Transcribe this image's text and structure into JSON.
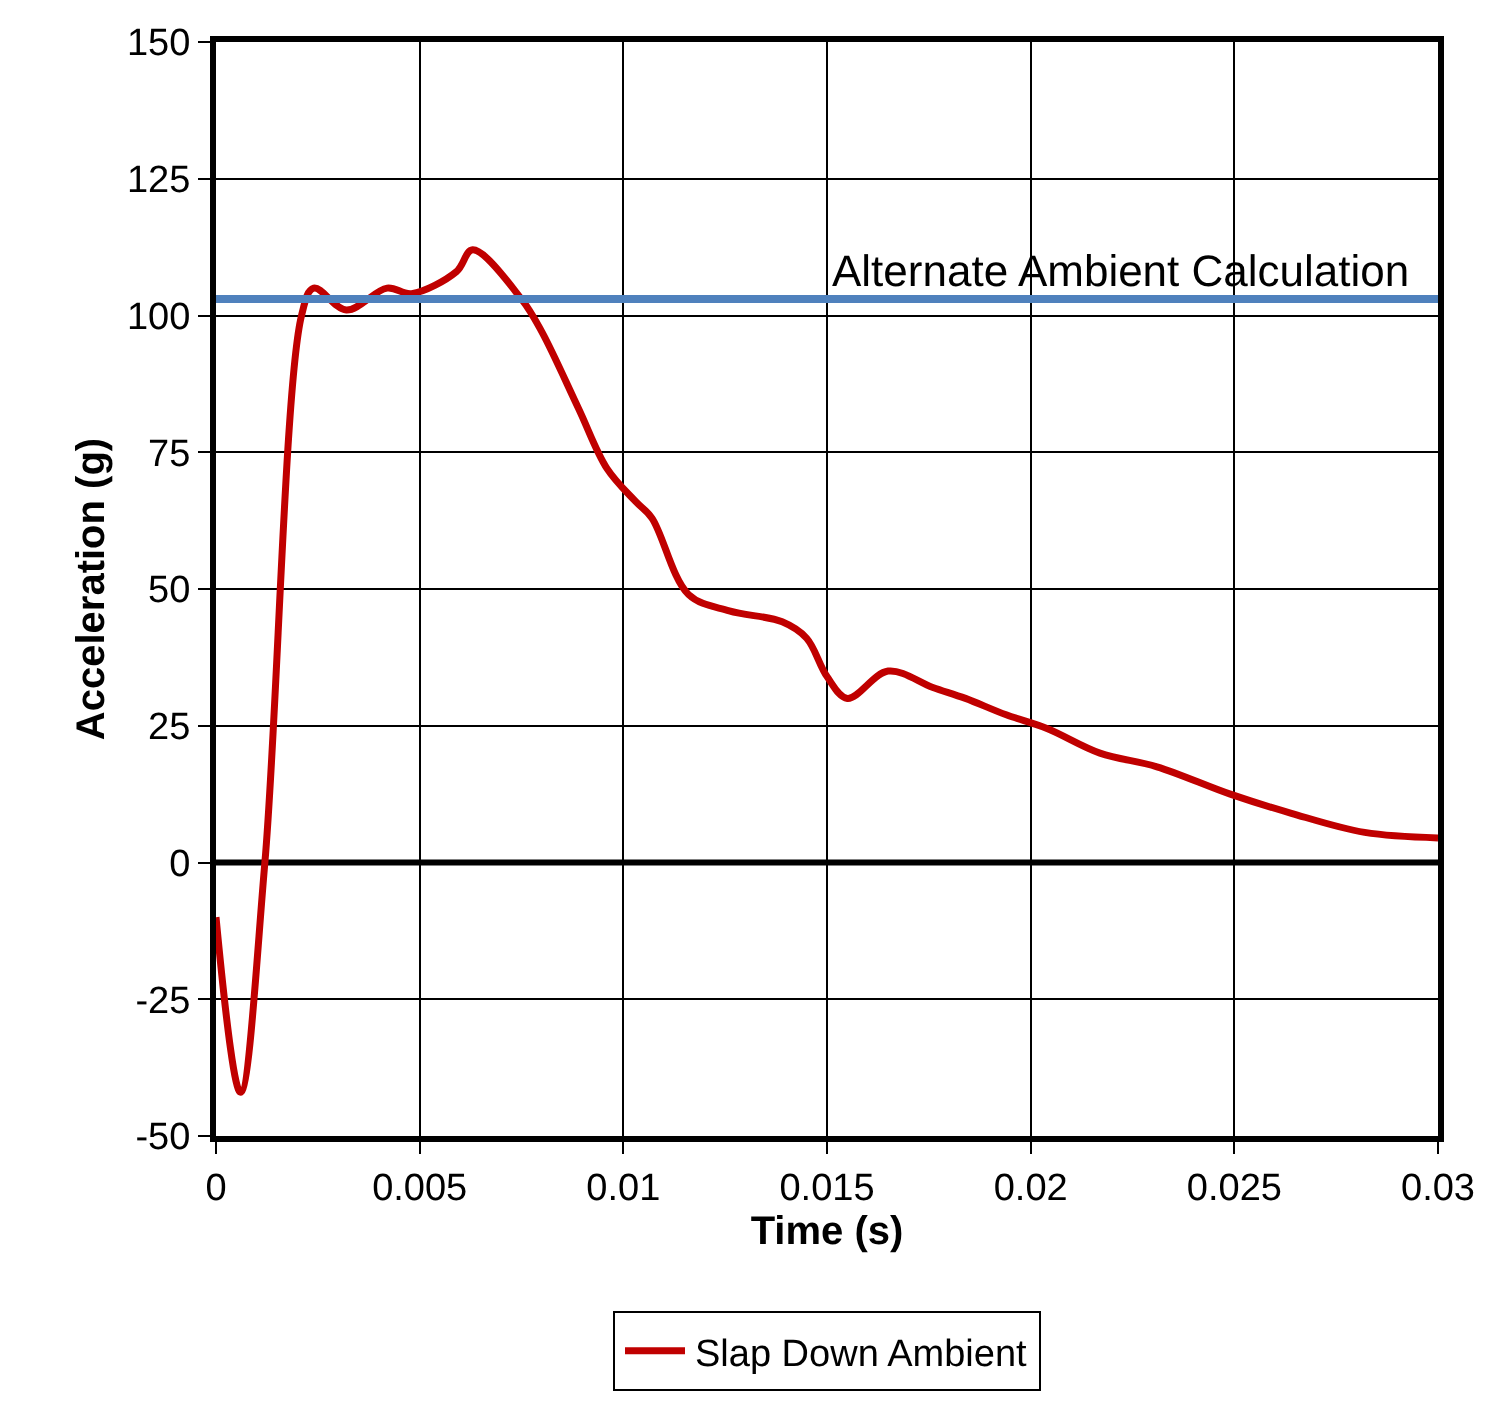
{
  "chart_data": {
    "type": "line",
    "xlabel": "Time (s)",
    "ylabel": "Acceleration (g)",
    "x": [
      0,
      0.0006,
      0.0012,
      0.0021,
      0.0024,
      0.0032,
      0.0042,
      0.0048,
      0.0059,
      0.0063,
      0.0075,
      0.008,
      0.0089,
      0.0096,
      0.0103,
      0.0107,
      0.0116,
      0.0126,
      0.0139,
      0.0145,
      0.015,
      0.0155,
      0.0165,
      0.0176,
      0.0184,
      0.0194,
      0.0204,
      0.0217,
      0.0231,
      0.0249,
      0.0264,
      0.0282,
      0.03
    ],
    "series": [
      {
        "name": "Slap Down Ambient",
        "color": "#c00000",
        "values": [
          -10,
          -42,
          0,
          100,
          105,
          101,
          105,
          104,
          108,
          112,
          103,
          97,
          83,
          72,
          66,
          63,
          49,
          46,
          44,
          41,
          34,
          30,
          35,
          32,
          30,
          27,
          24.5,
          20,
          17.5,
          12.5,
          9,
          5.5,
          4.5
        ]
      }
    ],
    "ref_lines": [
      {
        "axis": "y",
        "value": 103,
        "label": "Alternate Ambient Calculation",
        "color": "#4f81bd"
      }
    ],
    "xlim": [
      0,
      0.03
    ],
    "xticks": [
      0,
      0.005,
      0.01,
      0.015,
      0.02,
      0.025,
      0.03
    ],
    "ylim": [
      -50,
      150
    ],
    "yticks": [
      -50,
      -25,
      0,
      25,
      50,
      75,
      100,
      125,
      150
    ],
    "grid": true,
    "legend": "bottom",
    "marker": "none",
    "line_style": "solid"
  }
}
